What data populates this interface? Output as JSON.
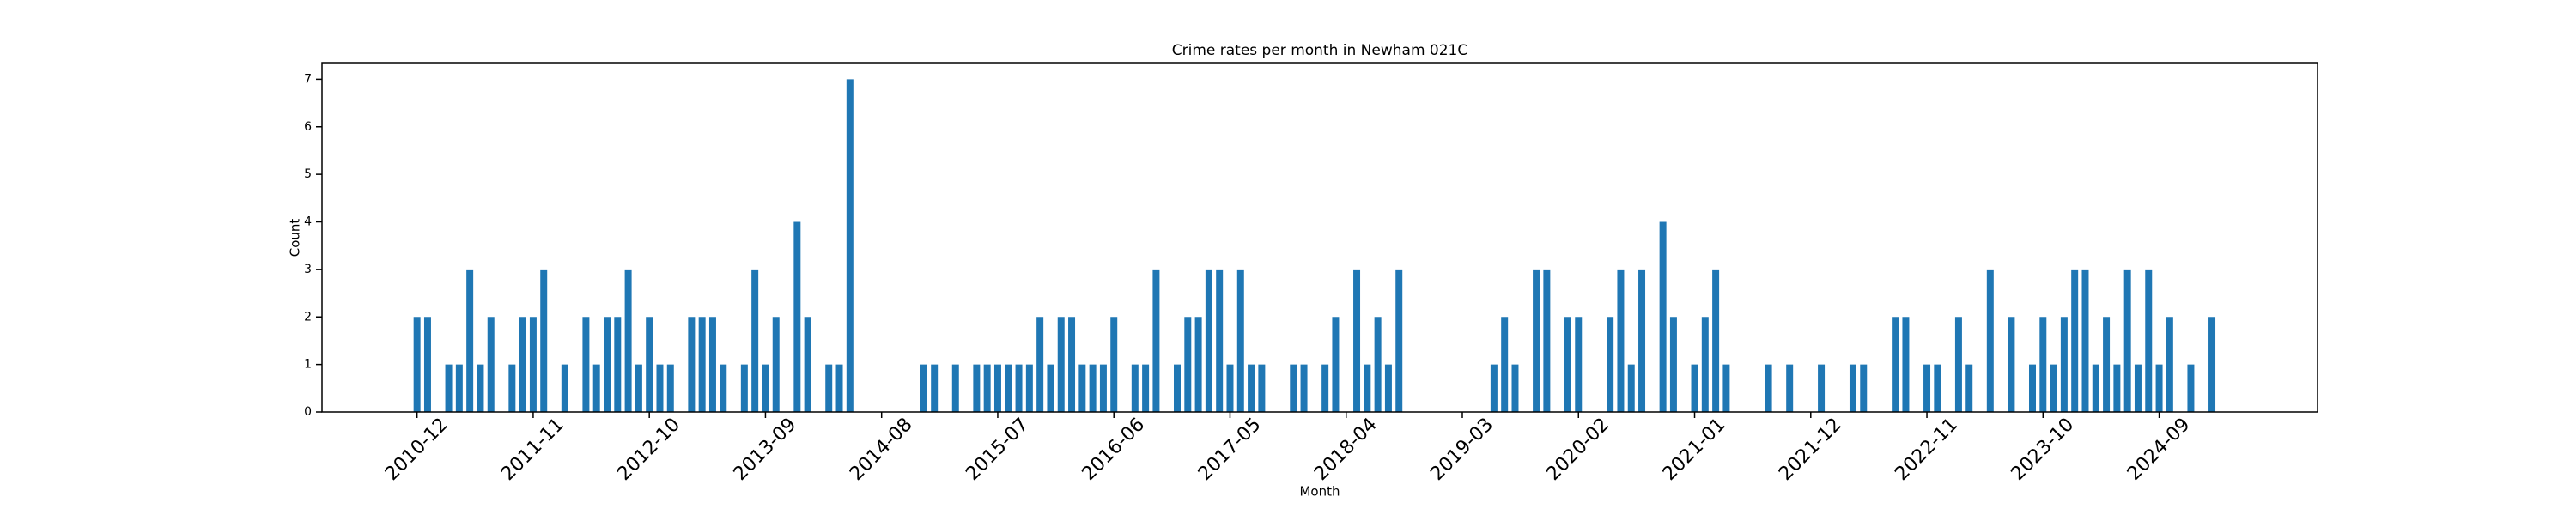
{
  "chart_data": {
    "type": "bar",
    "title": "Crime rates per month in Newham 021C",
    "x_label": "Month",
    "y_label": "Count",
    "color": "#1f77b4",
    "x": [
      "2010-12",
      "2011-01",
      "2011-03",
      "2011-04",
      "2011-05",
      "2011-06",
      "2011-07",
      "2011-09",
      "2011-10",
      "2011-11",
      "2011-12",
      "2012-02",
      "2012-04",
      "2012-05",
      "2012-06",
      "2012-07",
      "2012-08",
      "2012-09",
      "2012-10",
      "2012-11",
      "2012-12",
      "2013-02",
      "2013-03",
      "2013-04",
      "2013-05",
      "2013-07",
      "2013-08",
      "2013-09",
      "2013-10",
      "2013-12",
      "2014-01",
      "2014-03",
      "2014-04",
      "2014-05",
      "2014-12",
      "2015-01",
      "2015-03",
      "2015-05",
      "2015-06",
      "2015-07",
      "2015-08",
      "2015-09",
      "2015-10",
      "2015-11",
      "2015-12",
      "2016-01",
      "2016-02",
      "2016-03",
      "2016-04",
      "2016-05",
      "2016-06",
      "2016-08",
      "2016-09",
      "2016-10",
      "2016-12",
      "2017-01",
      "2017-02",
      "2017-03",
      "2017-04",
      "2017-05",
      "2017-06",
      "2017-07",
      "2017-08",
      "2017-11",
      "2017-12",
      "2018-02",
      "2018-03",
      "2018-05",
      "2018-06",
      "2018-07",
      "2018-08",
      "2018-09",
      "2019-06",
      "2019-07",
      "2019-08",
      "2019-10",
      "2019-11",
      "2020-01",
      "2020-02",
      "2020-05",
      "2020-06",
      "2020-07",
      "2020-08",
      "2020-10",
      "2020-11",
      "2021-01",
      "2021-02",
      "2021-03",
      "2021-04",
      "2021-08",
      "2021-10",
      "2022-01",
      "2022-04",
      "2022-05",
      "2022-08",
      "2022-09",
      "2022-11",
      "2022-12",
      "2023-02",
      "2023-03",
      "2023-05",
      "2023-07",
      "2023-09",
      "2023-10",
      "2023-11",
      "2023-12",
      "2024-01",
      "2024-02",
      "2024-03",
      "2024-04",
      "2024-05",
      "2024-06",
      "2024-07",
      "2024-08",
      "2024-09",
      "2024-10",
      "2024-12",
      "2025-02"
    ],
    "values": [
      2,
      2,
      1,
      1,
      3,
      1,
      2,
      1,
      2,
      2,
      3,
      1,
      2,
      1,
      2,
      2,
      3,
      1,
      2,
      1,
      1,
      2,
      2,
      2,
      1,
      1,
      3,
      1,
      2,
      4,
      2,
      1,
      1,
      7,
      1,
      1,
      1,
      1,
      1,
      1,
      1,
      1,
      1,
      2,
      1,
      2,
      2,
      1,
      1,
      1,
      2,
      1,
      1,
      3,
      1,
      2,
      2,
      3,
      3,
      1,
      3,
      1,
      1,
      1,
      1,
      1,
      2,
      3,
      1,
      2,
      1,
      3,
      1,
      2,
      1,
      3,
      3,
      2,
      2,
      2,
      3,
      1,
      3,
      4,
      2,
      1,
      2,
      3,
      1,
      1,
      1,
      1,
      1,
      1,
      2,
      2,
      1,
      1,
      2,
      1,
      3,
      2,
      1,
      2,
      1,
      2,
      3,
      3,
      1,
      2,
      1,
      3,
      1,
      3,
      1,
      2,
      1,
      2
    ],
    "xlim": [
      "2010-03",
      "2025-12"
    ],
    "xticks": [
      "2010-12",
      "2011-11",
      "2012-10",
      "2013-09",
      "2014-08",
      "2015-07",
      "2016-06",
      "2017-05",
      "2018-04",
      "2019-03",
      "2020-02",
      "2021-01",
      "2021-12",
      "2022-11",
      "2023-10",
      "2024-09"
    ],
    "ylim": [
      0,
      7.35
    ],
    "yticks": [
      0,
      1,
      2,
      3,
      4,
      5,
      6,
      7
    ]
  }
}
